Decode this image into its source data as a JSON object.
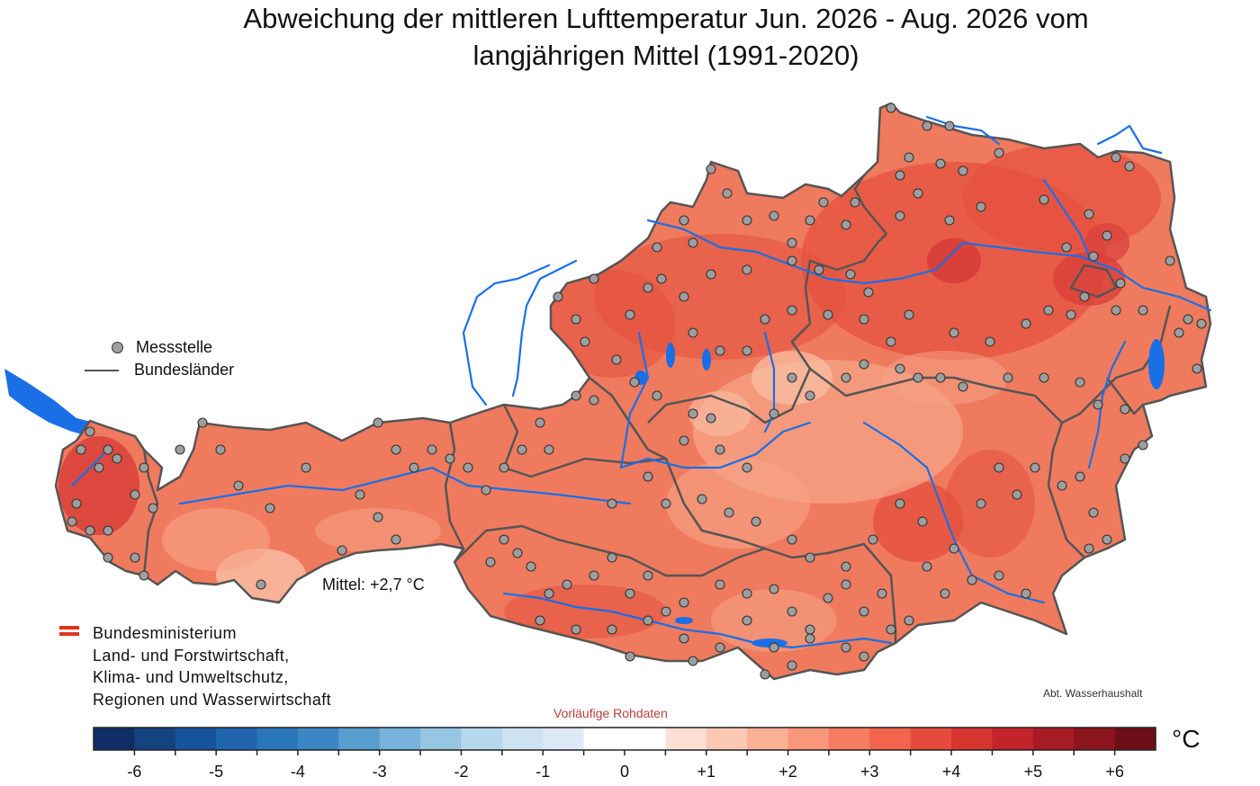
{
  "title_line1": "Abweichung der mittleren Lufttemperatur Jun. 2026 - Aug. 2026 vom",
  "title_line2": "langjährigen Mittel (1991-2020)",
  "legend": {
    "station_label": "Messstelle",
    "boundary_label": "Bundesländer"
  },
  "mean_label": "Mittel: +2,7 °C",
  "ministry": {
    "line1": "Bundesministerium",
    "line2": "Land- und Forstwirtschaft,",
    "line3": "Klima- und Umweltschutz,",
    "line4": "Regionen und Wasserwirtschaft",
    "flag_color": "#e2311d"
  },
  "department": "Abt. Wasserhaushalt",
  "preliminary": "Vorläufige Rohdaten",
  "unit": "°C",
  "colorbar": {
    "min": -6.5,
    "max": 6.5,
    "step": 0.5,
    "colors": [
      "#0f2d66",
      "#14437f",
      "#17539a",
      "#1f65ad",
      "#2a76ba",
      "#3b87c4",
      "#579ecf",
      "#76b2d9",
      "#96c6e2",
      "#b6d8ec",
      "#cde3f1",
      "#dde9f6",
      "#ffffff",
      "#ffffff",
      "#fedfd4",
      "#fcc8b4",
      "#fbb096",
      "#f9977c",
      "#f67c62",
      "#f2644c",
      "#e64a3d",
      "#d73530",
      "#c2242a",
      "#a71c24",
      "#8c141d",
      "#6e0f17"
    ],
    "tick_values": [
      -6,
      -5,
      -4,
      -3,
      -2,
      -1,
      0,
      1,
      2,
      3,
      4,
      5,
      6
    ],
    "tick_labels": [
      "-6",
      "-5",
      "-4",
      "-3",
      "-2",
      "-1",
      "0",
      "+1",
      "+2",
      "+3",
      "+4",
      "+5",
      "+6"
    ]
  },
  "map_colors": {
    "base": "#f07a5e",
    "warm": "#e5513f",
    "hot": "#d9403a",
    "cool": "#f6a487",
    "cooler": "#f9c0a5",
    "river": "#1a6fe6",
    "border": "#555555",
    "station": "#9e9e9e"
  }
}
